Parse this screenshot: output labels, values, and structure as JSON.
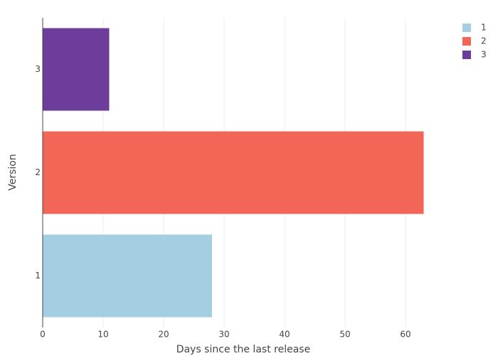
{
  "chart_data": {
    "type": "bar",
    "orientation": "horizontal",
    "x_label": "Days since the last release",
    "y_label": "Version",
    "categories": [
      "1",
      "2",
      "3"
    ],
    "series": [
      {
        "name": "1",
        "color": "#a6cee3",
        "values": [
          28,
          null,
          null
        ]
      },
      {
        "name": "2",
        "color": "#f26658",
        "values": [
          null,
          63,
          null
        ]
      },
      {
        "name": "3",
        "color": "#6c3d9a",
        "values": [
          null,
          null,
          11
        ]
      }
    ],
    "xlim": [
      0,
      70
    ],
    "xticks": [
      0,
      10,
      20,
      30,
      40,
      50,
      60
    ],
    "grid": true,
    "legend": "top-right"
  }
}
